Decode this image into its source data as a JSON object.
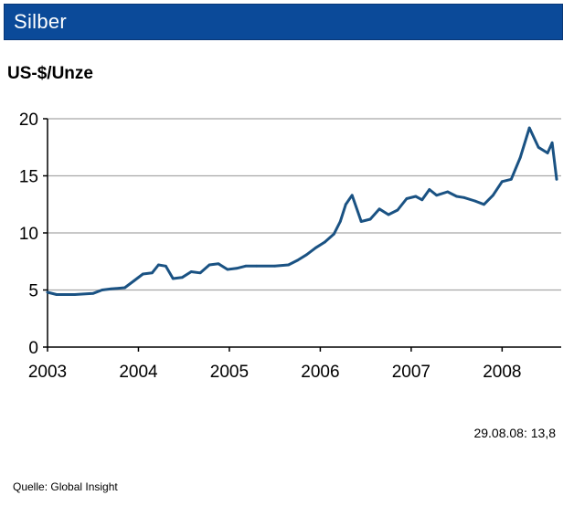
{
  "header": {
    "title": "Silber"
  },
  "colors": {
    "header_bg": "#0b4a99",
    "line": "#1a5283",
    "grid": "#a8a8a8"
  },
  "chart_data": {
    "type": "line",
    "title": "Silber",
    "ylabel": "US-$/Unze",
    "xlabel": "",
    "ylim": [
      0,
      20
    ],
    "xlim": [
      2003,
      2008.65
    ],
    "yticks": [
      0,
      5,
      10,
      15,
      20
    ],
    "xticks": [
      2003,
      2004,
      2005,
      2006,
      2007,
      2008
    ],
    "ytick_labels": [
      "0",
      "5",
      "10",
      "15",
      "20"
    ],
    "xtick_labels": [
      "2003",
      "2004",
      "2005",
      "2006",
      "2007",
      "2008"
    ],
    "grid": "horizontal",
    "legend": "none",
    "series": [
      {
        "x": [
          2003.0,
          2003.1,
          2003.3,
          2003.5,
          2003.6,
          2003.7,
          2003.85,
          2003.95,
          2004.05,
          2004.15,
          2004.22,
          2004.3,
          2004.38,
          2004.48,
          2004.58,
          2004.68,
          2004.78,
          2004.88,
          2004.98,
          2005.08,
          2005.18,
          2005.3,
          2005.5,
          2005.65,
          2005.75,
          2005.85,
          2005.95,
          2006.05,
          2006.15,
          2006.22,
          2006.28,
          2006.35,
          2006.45,
          2006.55,
          2006.65,
          2006.75,
          2006.85,
          2006.95,
          2007.05,
          2007.12,
          2007.2,
          2007.28,
          2007.4,
          2007.5,
          2007.58,
          2007.7,
          2007.8,
          2007.9,
          2008.0,
          2008.1,
          2008.2,
          2008.3,
          2008.4,
          2008.5,
          2008.55,
          2008.6
        ],
        "y": [
          4.8,
          4.6,
          4.6,
          4.7,
          5.0,
          5.1,
          5.2,
          5.8,
          6.4,
          6.5,
          7.2,
          7.1,
          6.0,
          6.1,
          6.6,
          6.5,
          7.2,
          7.3,
          6.8,
          6.9,
          7.1,
          7.1,
          7.1,
          7.2,
          7.6,
          8.1,
          8.7,
          9.2,
          9.9,
          11.0,
          12.5,
          13.3,
          11.0,
          11.2,
          12.1,
          11.6,
          12.0,
          13.0,
          13.2,
          12.9,
          13.8,
          13.3,
          13.6,
          13.2,
          13.1,
          12.8,
          12.5,
          13.3,
          14.5,
          14.7,
          16.6,
          19.2,
          17.5,
          17.0,
          17.9,
          14.7
        ]
      }
    ]
  },
  "footnote": {
    "date_value": "29.08.08: 13,8"
  },
  "source": {
    "text": "Quelle: Global Insight"
  }
}
